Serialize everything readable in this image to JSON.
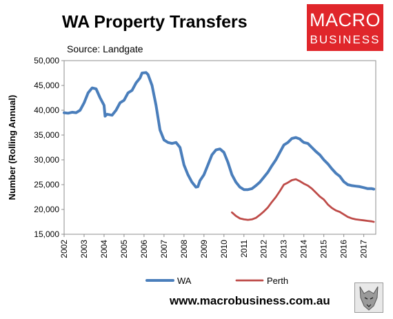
{
  "header": {
    "title": "WA Property Transfers",
    "source": "Source: Landgate"
  },
  "logo": {
    "line1": "MACRO",
    "line2": "BUSINESS"
  },
  "footer": {
    "website": "www.macrobusiness.com.au"
  },
  "chart_data": {
    "type": "line",
    "ylabel": "Number (Rolling Annual)",
    "ylim": [
      15000,
      50000
    ],
    "yticks": [
      15000,
      20000,
      25000,
      30000,
      35000,
      40000,
      45000,
      50000
    ],
    "ytick_labels": [
      "15,000",
      "20,000",
      "25,000",
      "30,000",
      "35,000",
      "40,000",
      "45,000",
      "50,000"
    ],
    "xlim": [
      2002.0,
      2017.6
    ],
    "xticks": [
      "2002",
      "2003",
      "2004",
      "2005",
      "2006",
      "2007",
      "2008",
      "2009",
      "2010",
      "2011",
      "2012",
      "2013",
      "2014",
      "2015",
      "2016",
      "2017"
    ],
    "grid": false,
    "legend": "bottom",
    "series": [
      {
        "name": "WA",
        "color": "#4a7ebb",
        "points": [
          [
            2002.0,
            39500
          ],
          [
            2002.2,
            39400
          ],
          [
            2002.4,
            39600
          ],
          [
            2002.6,
            39500
          ],
          [
            2002.8,
            40000
          ],
          [
            2003.0,
            41500
          ],
          [
            2003.2,
            43500
          ],
          [
            2003.4,
            44500
          ],
          [
            2003.6,
            44300
          ],
          [
            2003.8,
            42500
          ],
          [
            2004.0,
            41000
          ],
          [
            2004.05,
            38800
          ],
          [
            2004.15,
            39200
          ],
          [
            2004.4,
            39000
          ],
          [
            2004.6,
            40000
          ],
          [
            2004.8,
            41500
          ],
          [
            2005.0,
            42000
          ],
          [
            2005.2,
            43500
          ],
          [
            2005.4,
            44000
          ],
          [
            2005.6,
            45500
          ],
          [
            2005.8,
            46500
          ],
          [
            2005.9,
            47500
          ],
          [
            2006.1,
            47600
          ],
          [
            2006.2,
            47200
          ],
          [
            2006.4,
            45000
          ],
          [
            2006.6,
            41000
          ],
          [
            2006.8,
            36000
          ],
          [
            2007.0,
            34000
          ],
          [
            2007.2,
            33500
          ],
          [
            2007.4,
            33300
          ],
          [
            2007.6,
            33500
          ],
          [
            2007.8,
            32500
          ],
          [
            2008.0,
            29000
          ],
          [
            2008.2,
            27000
          ],
          [
            2008.4,
            25500
          ],
          [
            2008.6,
            24500
          ],
          [
            2008.7,
            24600
          ],
          [
            2008.8,
            25800
          ],
          [
            2009.0,
            27000
          ],
          [
            2009.2,
            29000
          ],
          [
            2009.4,
            31000
          ],
          [
            2009.6,
            32000
          ],
          [
            2009.8,
            32200
          ],
          [
            2010.0,
            31500
          ],
          [
            2010.2,
            29500
          ],
          [
            2010.4,
            27000
          ],
          [
            2010.6,
            25500
          ],
          [
            2010.8,
            24500
          ],
          [
            2011.0,
            24000
          ],
          [
            2011.2,
            24000
          ],
          [
            2011.4,
            24200
          ],
          [
            2011.6,
            24800
          ],
          [
            2011.8,
            25500
          ],
          [
            2012.0,
            26500
          ],
          [
            2012.2,
            27500
          ],
          [
            2012.4,
            28800
          ],
          [
            2012.6,
            30000
          ],
          [
            2012.8,
            31500
          ],
          [
            2013.0,
            33000
          ],
          [
            2013.2,
            33500
          ],
          [
            2013.4,
            34300
          ],
          [
            2013.6,
            34500
          ],
          [
            2013.8,
            34200
          ],
          [
            2013.9,
            33800
          ],
          [
            2014.0,
            33500
          ],
          [
            2014.2,
            33300
          ],
          [
            2014.4,
            32500
          ],
          [
            2014.6,
            31700
          ],
          [
            2014.8,
            31000
          ],
          [
            2015.0,
            30000
          ],
          [
            2015.2,
            29200
          ],
          [
            2015.4,
            28200
          ],
          [
            2015.6,
            27300
          ],
          [
            2015.8,
            26700
          ],
          [
            2016.0,
            25600
          ],
          [
            2016.2,
            25000
          ],
          [
            2016.4,
            24800
          ],
          [
            2016.6,
            24700
          ],
          [
            2016.8,
            24600
          ],
          [
            2017.0,
            24400
          ],
          [
            2017.2,
            24200
          ],
          [
            2017.4,
            24200
          ],
          [
            2017.5,
            24100
          ]
        ]
      },
      {
        "name": "Perth",
        "color": "#be4b48",
        "points": [
          [
            2010.4,
            19400
          ],
          [
            2010.6,
            18700
          ],
          [
            2010.8,
            18200
          ],
          [
            2011.0,
            18000
          ],
          [
            2011.2,
            17900
          ],
          [
            2011.4,
            18000
          ],
          [
            2011.6,
            18300
          ],
          [
            2011.8,
            18900
          ],
          [
            2012.0,
            19600
          ],
          [
            2012.2,
            20400
          ],
          [
            2012.4,
            21500
          ],
          [
            2012.6,
            22500
          ],
          [
            2012.8,
            23700
          ],
          [
            2013.0,
            25000
          ],
          [
            2013.2,
            25400
          ],
          [
            2013.4,
            25900
          ],
          [
            2013.6,
            26100
          ],
          [
            2013.8,
            25700
          ],
          [
            2014.0,
            25200
          ],
          [
            2014.2,
            24800
          ],
          [
            2014.4,
            24200
          ],
          [
            2014.6,
            23400
          ],
          [
            2014.8,
            22600
          ],
          [
            2015.0,
            22000
          ],
          [
            2015.2,
            21000
          ],
          [
            2015.4,
            20300
          ],
          [
            2015.6,
            19800
          ],
          [
            2015.8,
            19500
          ],
          [
            2016.0,
            19000
          ],
          [
            2016.2,
            18500
          ],
          [
            2016.4,
            18200
          ],
          [
            2016.6,
            18000
          ],
          [
            2016.8,
            17900
          ],
          [
            2017.0,
            17800
          ],
          [
            2017.2,
            17700
          ],
          [
            2017.4,
            17600
          ],
          [
            2017.5,
            17500
          ]
        ]
      }
    ]
  }
}
